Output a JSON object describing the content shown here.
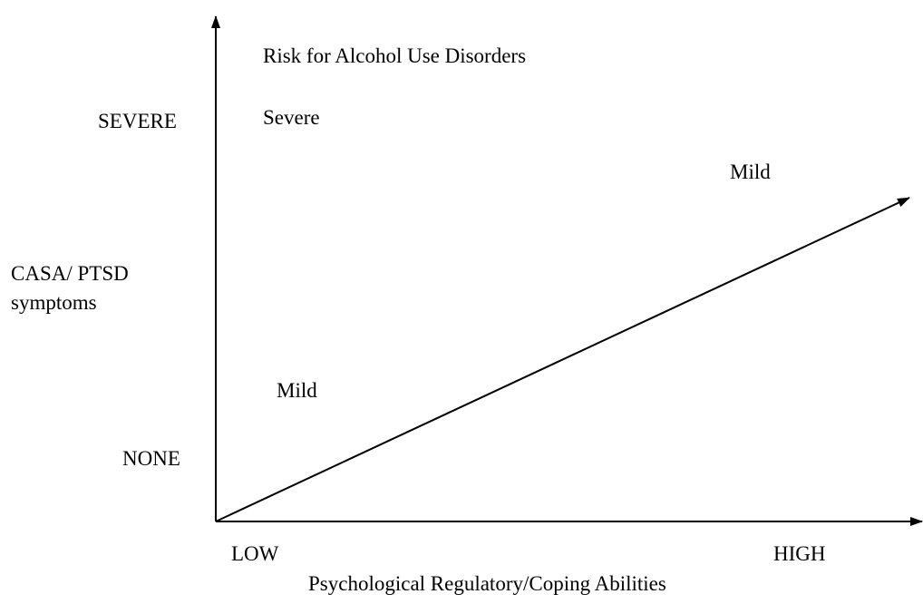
{
  "title": "Risk for Alcohol Use Disorders",
  "y_axis": {
    "label_lines": [
      "CASA/ PTSD",
      "symptoms"
    ],
    "high": "SEVERE",
    "low": "NONE"
  },
  "x_axis": {
    "label": "Psychological Regulatory/Coping Abilities",
    "low": "LOW",
    "high": "HIGH"
  },
  "risk_labels": {
    "severe": "Severe",
    "mild_upper": "Mild",
    "mild_lower": "Mild"
  }
}
